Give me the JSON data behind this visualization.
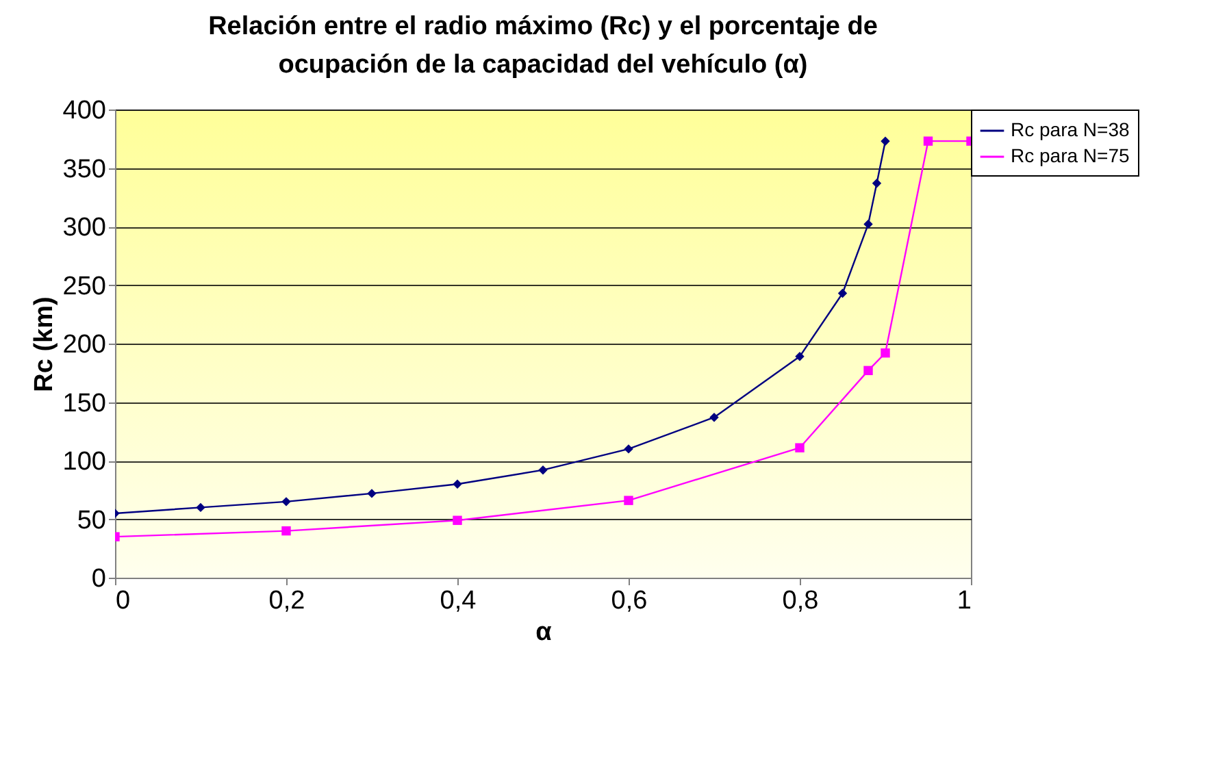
{
  "chart_data": {
    "type": "line",
    "title": "Relación entre el radio máximo (Rc) y el porcentaje de ocupación de la capacidad del vehículo (α)",
    "xlabel": "α",
    "ylabel": "Rc (km)",
    "xlim": [
      0,
      1
    ],
    "xticks": [
      0,
      {
        "value": 0.2,
        "label": "0,2"
      },
      {
        "value": 0.4,
        "label": "0,4"
      },
      {
        "value": 0.6,
        "label": "0,6"
      },
      {
        "value": 0.8,
        "label": "0,8"
      },
      1
    ],
    "ylim": [
      0,
      400
    ],
    "yticks": [
      0,
      50,
      100,
      150,
      200,
      250,
      300,
      350,
      400
    ],
    "grid": "y",
    "legend": "right",
    "series": [
      {
        "name": "Rc para N=38",
        "color": "#000080",
        "marker": "diamond",
        "x": [
          0,
          0.1,
          0.2,
          0.3,
          0.4,
          0.5,
          0.6,
          0.7,
          0.8,
          0.85,
          0.88,
          0.89,
          0.9
        ],
        "values": [
          55,
          60,
          65,
          72,
          80,
          92,
          110,
          137,
          189,
          243,
          302,
          337,
          373
        ]
      },
      {
        "name": "Rc para N=75",
        "color": "#ff00ff",
        "marker": "square",
        "x": [
          0,
          0.2,
          0.4,
          0.6,
          0.8,
          0.88,
          0.9,
          0.95,
          1
        ],
        "values": [
          35,
          40,
          49,
          66,
          111,
          177,
          192,
          373,
          373
        ]
      }
    ]
  }
}
